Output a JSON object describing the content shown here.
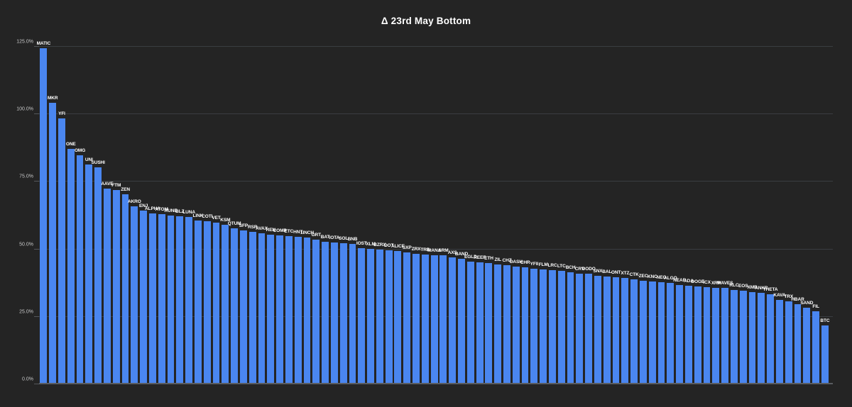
{
  "page": {
    "background": "#242424"
  },
  "chart_data": {
    "type": "bar",
    "title": "Δ 23rd May Bottom",
    "xlabel": "",
    "ylabel": "",
    "unit": "%",
    "ylim": [
      0,
      125
    ],
    "grid": "horizontal",
    "legend": "none",
    "bar_color": "#4a86f0",
    "background_color": "#242424",
    "gridline_color": "#3a3d41",
    "baseline_color": "#5a5d61",
    "tick_text_color": "#c7c8c9",
    "bar_label_color": "#ffffff",
    "title_color": "#ffffff",
    "y_ticks": [
      {
        "value": 0,
        "label": "0.0%"
      },
      {
        "value": 25,
        "label": "25.0%"
      },
      {
        "value": 50,
        "label": "50.0%"
      },
      {
        "value": 75,
        "label": "75.0%"
      },
      {
        "value": 100,
        "label": "100.0%"
      },
      {
        "value": 125,
        "label": "125.0%"
      }
    ],
    "categories": [
      "MATIC",
      "MKR",
      "YFI",
      "ONE",
      "OMG",
      "UNI",
      "SUSHI",
      "AAVE",
      "FTM",
      "ZEN",
      "AKRO",
      "ENJ",
      "ALPHA",
      "ATOM",
      "RUNE",
      "BLZ",
      "LUNA",
      "LINK",
      "COTI",
      "VET",
      "KSM",
      "QTUM",
      "SFP",
      "RSR",
      "AVAX",
      "REN",
      "COMP",
      "ETC",
      "HNT",
      "1INCH",
      "GRT",
      "BAT",
      "IOTA",
      "SOL",
      "BNB",
      "IOST",
      "XLM",
      "BZRX",
      "DOT",
      "ALICE",
      "SXP",
      "ZRX",
      "TRB",
      "MANA",
      "SRM",
      "AXS",
      "BAND",
      "EGLD",
      "REEF",
      "ETH",
      "ZIL",
      "CHZ",
      "DASH",
      "CHR",
      "YFII",
      "FLM",
      "LRC",
      "LTC",
      "BCH",
      "CRV",
      "DODO",
      "SNX",
      "BAL",
      "ONT",
      "XTZ",
      "CTK",
      "ZEC",
      "KNC",
      "NEO",
      "ALGO",
      "NEAR",
      "ADA",
      "DOGE",
      "ICX",
      "XRP",
      "WAVES",
      "RLC",
      "EOS",
      "XMR",
      "ANKR",
      "THETA",
      "KAVA",
      "TRX",
      "HBAR",
      "SAND",
      "FIL",
      "BTC"
    ],
    "values": [
      124.5,
      104.3,
      98.6,
      87.2,
      84.8,
      81.5,
      80.4,
      72.5,
      72.0,
      70.3,
      66.0,
      64.4,
      63.3,
      62.9,
      62.6,
      62.3,
      61.9,
      60.7,
      60.3,
      60.0,
      59.0,
      57.8,
      57.1,
      56.5,
      55.9,
      55.4,
      55.1,
      54.9,
      54.6,
      54.3,
      53.7,
      52.9,
      52.4,
      52.2,
      52.0,
      50.4,
      50.2,
      49.9,
      49.7,
      49.4,
      48.9,
      48.3,
      48.0,
      47.8,
      47.7,
      46.9,
      46.5,
      45.5,
      45.2,
      45.0,
      44.4,
      44.0,
      43.6,
      43.4,
      42.8,
      42.5,
      42.2,
      42.0,
      41.4,
      41.1,
      40.9,
      40.2,
      39.9,
      39.7,
      39.5,
      38.9,
      38.4,
      38.2,
      37.8,
      37.6,
      36.9,
      36.5,
      36.3,
      36.1,
      35.8,
      35.6,
      35.0,
      34.6,
      34.2,
      33.8,
      33.3,
      31.3,
      30.6,
      29.8,
      28.4,
      27.0,
      21.8
    ]
  }
}
